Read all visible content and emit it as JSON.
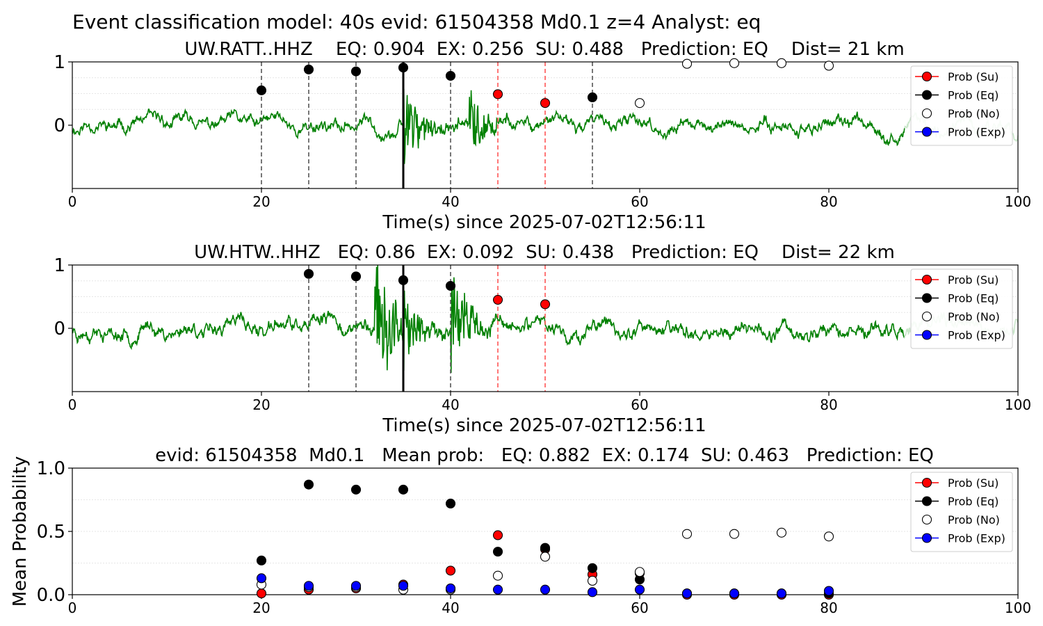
{
  "figure": {
    "suptitle": "Event classification model: 40s evid: 61504358 Md0.1 z=4 Analyst: eq"
  },
  "legend_labels": [
    "Prob (Su)",
    "Prob (Eq)",
    "Prob (No)",
    "Prob (Exp)"
  ],
  "colors": {
    "su": "#ff0000",
    "eq": "#000000",
    "no": "#ffffff",
    "exp": "#0000ff",
    "waveform": "#008000",
    "waveform_faded": "#c8e6c9",
    "vline_eq": "#555555",
    "vline_su": "#ff5555"
  },
  "chart_data": [
    {
      "type": "line",
      "title": "UW.RATT..HHZ    EQ: 0.904  EX: 0.256  SU: 0.488   Prediction: EQ    Dist= 21 km",
      "xlabel": "Time(s) since 2025-07-02T12:56:11",
      "ylabel": "",
      "xlim": [
        0,
        100
      ],
      "ylim": [
        -1,
        1
      ],
      "xticks": [
        "0",
        "20",
        "40",
        "60",
        "80",
        "100"
      ],
      "yticks": [
        "1",
        "0"
      ],
      "waveform": {
        "seed": 11,
        "bursts": [
          [
            35,
            0.9
          ],
          [
            42,
            0.55
          ]
        ],
        "noise": 0.1
      },
      "arrival_time": 35,
      "vlines_eq": [
        20,
        25,
        30,
        40,
        55
      ],
      "vlines_su": [
        45,
        50
      ],
      "series": [
        {
          "name": "Prob (Su)",
          "x": [
            45,
            50
          ],
          "y": [
            0.49,
            0.35
          ]
        },
        {
          "name": "Prob (Eq)",
          "x": [
            20,
            25,
            30,
            35,
            40,
            55
          ],
          "y": [
            0.55,
            0.88,
            0.85,
            0.91,
            0.78,
            0.44
          ]
        },
        {
          "name": "Prob (No)",
          "x": [
            60,
            65,
            70,
            75,
            80
          ],
          "y": [
            0.35,
            0.97,
            0.98,
            0.98,
            0.94
          ]
        },
        {
          "name": "Prob (Exp)",
          "x": [],
          "y": []
        }
      ]
    },
    {
      "type": "line",
      "title": "UW.HTW..HHZ   EQ: 0.86  EX: 0.092  SU: 0.438   Prediction: EQ    Dist= 22 km",
      "xlabel": "Time(s) since 2025-07-02T12:56:11",
      "ylabel": "",
      "xlim": [
        0,
        100
      ],
      "ylim": [
        -1,
        1
      ],
      "xticks": [
        "0",
        "20",
        "40",
        "60",
        "80",
        "100"
      ],
      "yticks": [
        "1",
        "0"
      ],
      "waveform": {
        "seed": 23,
        "bursts": [
          [
            32,
            1.4
          ],
          [
            35,
            0.7
          ],
          [
            40,
            1.0
          ]
        ],
        "noise": 0.13
      },
      "arrival_time": 35,
      "vlines_eq": [
        25,
        30,
        40
      ],
      "vlines_su": [
        45,
        50
      ],
      "series": [
        {
          "name": "Prob (Su)",
          "x": [
            45,
            50
          ],
          "y": [
            0.45,
            0.38
          ]
        },
        {
          "name": "Prob (Eq)",
          "x": [
            25,
            30,
            35,
            40
          ],
          "y": [
            0.86,
            0.82,
            0.76,
            0.67
          ]
        },
        {
          "name": "Prob (No)",
          "x": [],
          "y": []
        },
        {
          "name": "Prob (Exp)",
          "x": [],
          "y": []
        }
      ]
    },
    {
      "type": "scatter",
      "title": "evid: 61504358  Md0.1   Mean prob:   EQ: 0.882  EX: 0.174  SU: 0.463   Prediction: EQ",
      "xlabel": "",
      "ylabel": "Mean Probability",
      "xlim": [
        0,
        100
      ],
      "ylim": [
        0,
        1
      ],
      "xticks": [
        "0",
        "20",
        "40",
        "60",
        "80",
        "100"
      ],
      "yticks": [
        "1.0",
        "0.5",
        "0.0"
      ],
      "series": [
        {
          "name": "Prob (Su)",
          "x": [
            20,
            25,
            30,
            35,
            40,
            45,
            50,
            55,
            60,
            65,
            70,
            75,
            80
          ],
          "y": [
            0.01,
            0.04,
            0.05,
            0.08,
            0.19,
            0.47,
            0.36,
            0.16,
            0.17,
            0.0,
            0.0,
            0.0,
            0.0
          ]
        },
        {
          "name": "Prob (Eq)",
          "x": [
            20,
            25,
            30,
            35,
            40,
            45,
            50,
            55,
            60,
            65,
            70,
            75,
            80
          ],
          "y": [
            0.27,
            0.87,
            0.83,
            0.83,
            0.72,
            0.34,
            0.37,
            0.21,
            0.12,
            0.01,
            0.01,
            0.01,
            0.01
          ]
        },
        {
          "name": "Prob (No)",
          "x": [
            20,
            25,
            30,
            35,
            40,
            45,
            50,
            55,
            60,
            65,
            70,
            75,
            80
          ],
          "y": [
            0.08,
            0.06,
            0.06,
            0.04,
            0.04,
            0.15,
            0.3,
            0.11,
            0.18,
            0.48,
            0.48,
            0.49,
            0.46
          ]
        },
        {
          "name": "Prob (Exp)",
          "x": [
            20,
            25,
            30,
            35,
            40,
            45,
            50,
            55,
            60,
            65,
            70,
            75,
            80
          ],
          "y": [
            0.13,
            0.07,
            0.07,
            0.07,
            0.05,
            0.04,
            0.04,
            0.02,
            0.04,
            0.01,
            0.01,
            0.01,
            0.03
          ]
        }
      ]
    }
  ]
}
